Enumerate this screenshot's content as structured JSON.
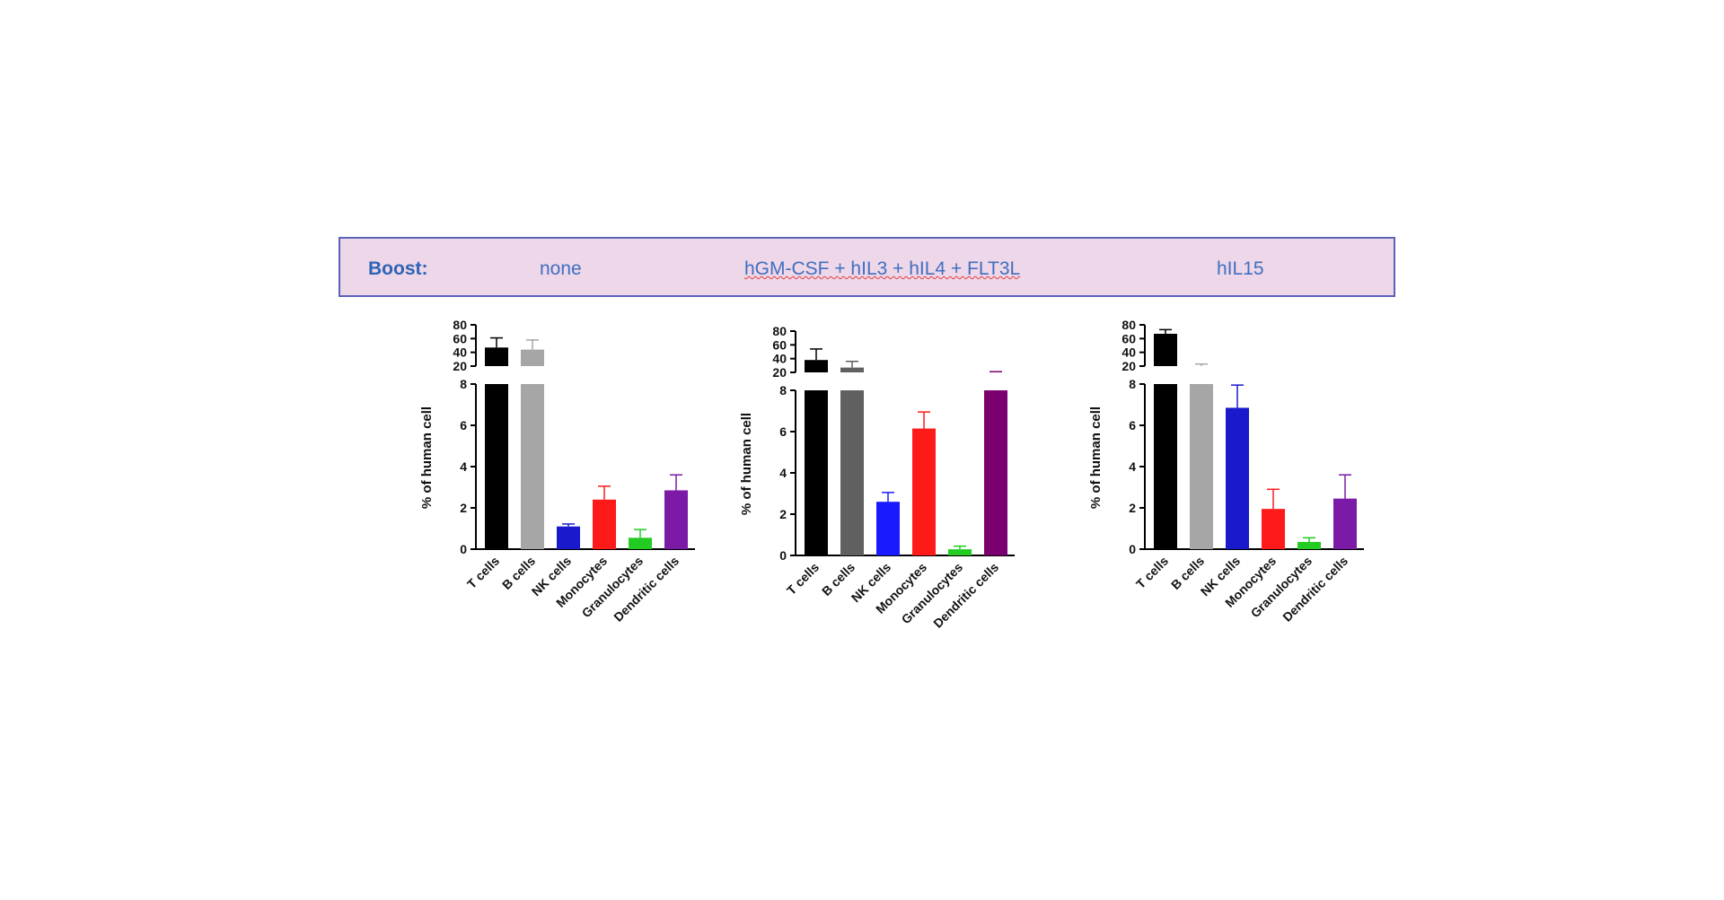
{
  "header": {
    "boost_label": "Boost:",
    "groups": [
      "none",
      "hGM-CSF + hIL3 + hIL4 + FLT3L",
      "hIL15"
    ]
  },
  "chart_data": [
    {
      "type": "bar",
      "group": "none",
      "categories": [
        "T cells",
        "B cells",
        "NK cells",
        "Monocytes",
        "Granulocytes",
        "Dendritic cells"
      ],
      "values": [
        47,
        44,
        1.1,
        2.4,
        0.55,
        2.85
      ],
      "errors": [
        14,
        14,
        0.12,
        0.65,
        0.4,
        0.75
      ],
      "colors": [
        "#000000",
        "#a6a6a6",
        "#1a1acc",
        "#ff1a1a",
        "#22cc22",
        "#7a1aa6"
      ],
      "ylabel": "% of human cell",
      "ylim_lower": [
        0,
        8
      ],
      "ylim_upper": [
        20,
        80
      ],
      "yticks_lower": [
        0,
        2,
        4,
        6,
        8
      ],
      "yticks_upper": [
        20,
        40,
        60,
        80
      ]
    },
    {
      "type": "bar",
      "group": "hGM-CSF + hIL3 + hIL4 + FLT3L",
      "categories": [
        "T cells",
        "B cells",
        "NK cells",
        "Monocytes",
        "Granulocytes",
        "Dendritic cells"
      ],
      "values": [
        38,
        27,
        2.6,
        6.15,
        0.3,
        17
      ],
      "errors": [
        16,
        9,
        0.45,
        0.8,
        0.15,
        4
      ],
      "colors": [
        "#000000",
        "#606060",
        "#1a1aff",
        "#ff1a1a",
        "#22cc22",
        "#7a0070"
      ],
      "ylabel": "% of human cell",
      "ylim_lower": [
        0,
        8
      ],
      "ylim_upper": [
        20,
        80
      ],
      "yticks_lower": [
        0,
        2,
        4,
        6,
        8
      ],
      "yticks_upper": [
        20,
        40,
        60,
        80
      ]
    },
    {
      "type": "bar",
      "group": "hIL15",
      "categories": [
        "T cells",
        "B cells",
        "NK cells",
        "Monocytes",
        "Granulocytes",
        "Dendritic cells"
      ],
      "values": [
        67,
        19,
        6.85,
        1.95,
        0.35,
        2.45
      ],
      "errors": [
        6,
        4,
        1.1,
        0.95,
        0.2,
        1.15
      ],
      "colors": [
        "#000000",
        "#a6a6a6",
        "#1a1acc",
        "#ff1a1a",
        "#22cc22",
        "#7a1aa6"
      ],
      "ylabel": "% of human cell",
      "ylim_lower": [
        0,
        8
      ],
      "ylim_upper": [
        20,
        80
      ],
      "yticks_lower": [
        0,
        2,
        4,
        6,
        8
      ],
      "yticks_upper": [
        20,
        40,
        60,
        80
      ]
    }
  ]
}
